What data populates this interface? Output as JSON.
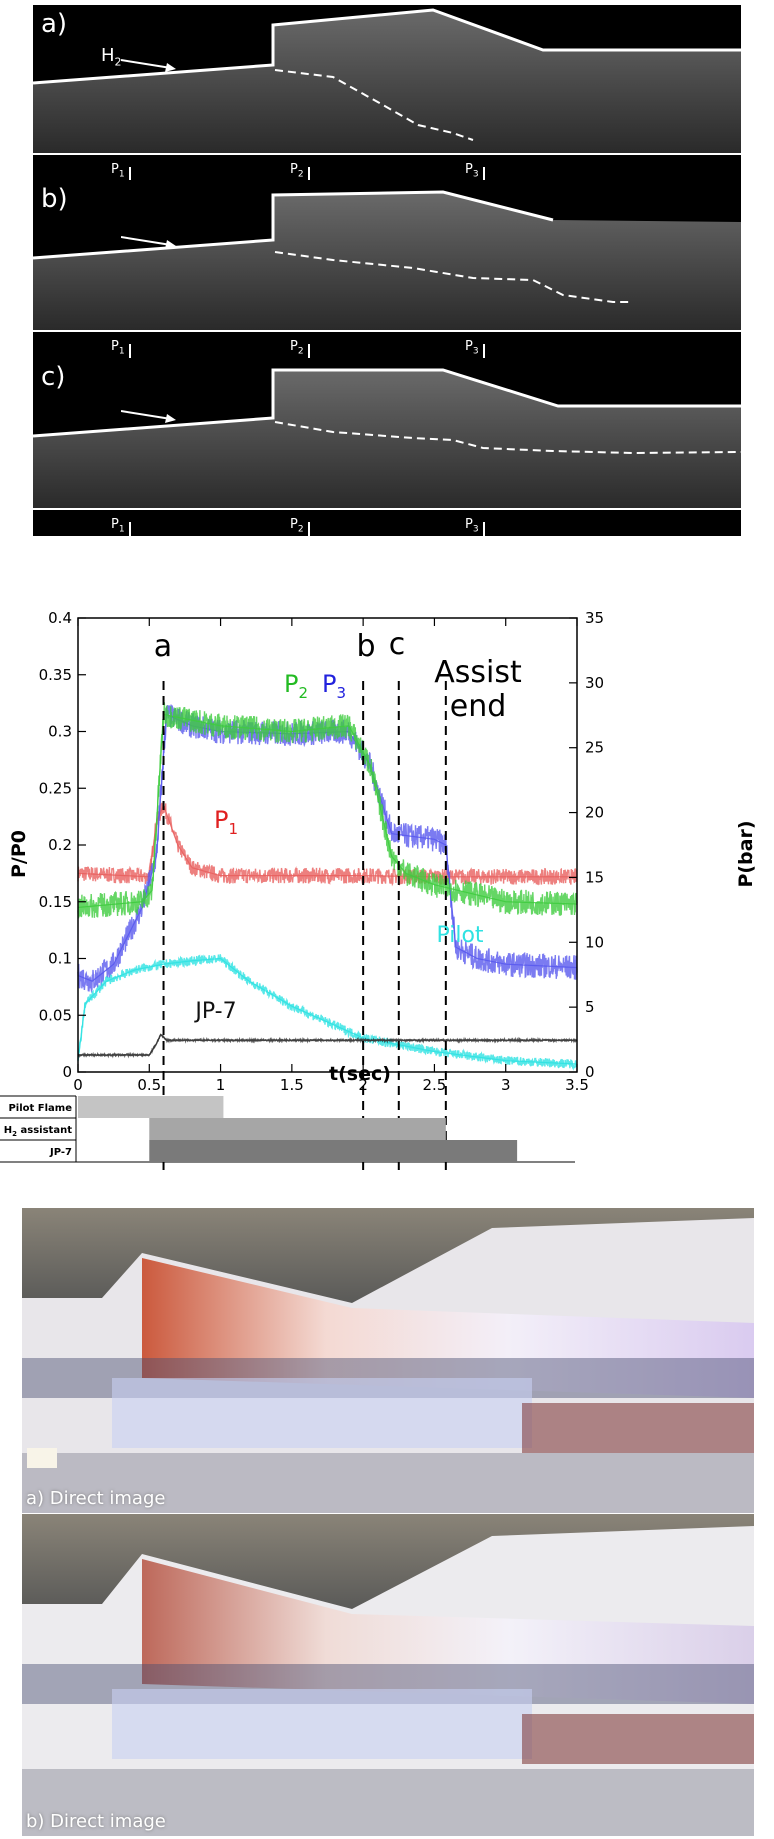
{
  "schlieren": {
    "panels": [
      {
        "label": "a)",
        "arrow_label": "H",
        "arrow_label_sub": "2"
      },
      {
        "label": "b)"
      },
      {
        "label": "c)"
      }
    ],
    "probes": [
      {
        "name": "P",
        "sub": "1"
      },
      {
        "name": "P",
        "sub": "2"
      },
      {
        "name": "P",
        "sub": "3"
      }
    ]
  },
  "chart_data": {
    "type": "line",
    "xlabel": "t(sec)",
    "ylabel": "P/P0",
    "ylabel_right": "P(bar)",
    "xlim": [
      0,
      3.5
    ],
    "ylim": [
      0,
      0.4
    ],
    "ylim_right": [
      0,
      35
    ],
    "xticks": [
      "0",
      "0.5",
      "1",
      "1.5",
      "2",
      "2.5",
      "3",
      "3.5"
    ],
    "yticks": [
      "0",
      "0.05",
      "0.1",
      "0.15",
      "0.2",
      "0.25",
      "0.3",
      "0.35",
      "0.4"
    ],
    "yticks_right": [
      "0",
      "5",
      "10",
      "15",
      "20",
      "25",
      "30",
      "35"
    ],
    "series": [
      {
        "name": "P1",
        "label": "P",
        "label_sub": "1",
        "color": "#e8605f",
        "x": [
          0,
          0.5,
          0.55,
          0.6,
          0.7,
          0.8,
          1.0,
          1.5,
          2.0,
          2.5,
          3.0,
          3.5
        ],
        "y": [
          0.175,
          0.172,
          0.22,
          0.235,
          0.2,
          0.18,
          0.173,
          0.173,
          0.173,
          0.172,
          0.172,
          0.172
        ]
      },
      {
        "name": "P2",
        "label": "P",
        "label_sub": "2",
        "color": "#3fcc3f",
        "x": [
          0,
          0.45,
          0.52,
          0.6,
          0.8,
          1.0,
          1.5,
          1.9,
          2.05,
          2.2,
          2.3,
          2.5,
          3.0,
          3.5
        ],
        "y": [
          0.145,
          0.15,
          0.16,
          0.315,
          0.31,
          0.305,
          0.3,
          0.305,
          0.27,
          0.19,
          0.175,
          0.165,
          0.15,
          0.148
        ]
      },
      {
        "name": "P3",
        "label": "P",
        "label_sub": "3",
        "color": "#5a5aee",
        "x": [
          0,
          0.1,
          0.25,
          0.45,
          0.55,
          0.62,
          0.8,
          1.0,
          1.5,
          1.9,
          2.05,
          2.2,
          2.5,
          2.58,
          2.65,
          2.8,
          3.0,
          3.5
        ],
        "y": [
          0.085,
          0.08,
          0.095,
          0.145,
          0.19,
          0.315,
          0.305,
          0.3,
          0.298,
          0.3,
          0.27,
          0.21,
          0.205,
          0.2,
          0.11,
          0.1,
          0.095,
          0.092
        ]
      },
      {
        "name": "Pilot",
        "label": "Pilot",
        "color": "#2fe2e2",
        "x": [
          0,
          0.05,
          0.2,
          0.4,
          0.6,
          0.8,
          1.0,
          1.05,
          1.2,
          1.5,
          2.0,
          2.5,
          3.0,
          3.5
        ],
        "y": [
          0.01,
          0.06,
          0.08,
          0.09,
          0.095,
          0.098,
          0.1,
          0.095,
          0.08,
          0.058,
          0.03,
          0.018,
          0.01,
          0.007
        ]
      },
      {
        "name": "JP-7",
        "label": "JP-7",
        "color": "#333333",
        "x": [
          0,
          0.5,
          0.55,
          0.58,
          0.62,
          1.0,
          2.0,
          3.0,
          3.5
        ],
        "y": [
          0.015,
          0.015,
          0.025,
          0.033,
          0.028,
          0.028,
          0.028,
          0.028,
          0.028
        ]
      }
    ],
    "events": [
      {
        "label": "a",
        "t": 0.6
      },
      {
        "label": "b",
        "t": 2.0
      },
      {
        "label": "c",
        "t": 2.25
      },
      {
        "label": "Assist end",
        "t": 2.58
      }
    ],
    "timeline": [
      {
        "label": "Pilot Flame",
        "start": 0,
        "end": 1.02,
        "color": "#c4c4c4"
      },
      {
        "label": "H",
        "label_sub": "2",
        "label_rest": " assistant",
        "start": 0.5,
        "end": 2.58,
        "color": "#a6a6a6"
      },
      {
        "label": "JP-7",
        "start": 0.5,
        "end": 3.08,
        "color": "#7a7a7a"
      }
    ]
  },
  "photos": [
    {
      "caption": "a) Direct image"
    },
    {
      "caption": "b) Direct image"
    }
  ]
}
